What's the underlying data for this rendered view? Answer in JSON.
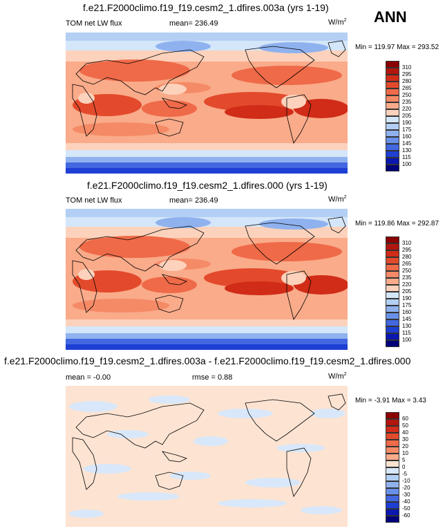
{
  "season": "ANN",
  "panels": [
    {
      "title": "f.e21.F2000climo.f19_f19.cesm2_1.dfires.003a (yrs 1-19)",
      "variable": "TOM net LW flux",
      "mean_label": "mean= 236.49",
      "units_base": "W/m",
      "units_exp": "2",
      "minmax": "Min = 119.97 Max = 293.52",
      "levels": [
        "310",
        "295",
        "280",
        "265",
        "250",
        "235",
        "220",
        "205",
        "190",
        "175",
        "160",
        "145",
        "130",
        "115",
        "100"
      ],
      "colors": [
        "#8b0000",
        "#b2160e",
        "#d02c18",
        "#e34a2c",
        "#ef6a48",
        "#f58a66",
        "#f9ab8a",
        "#fdd2bc",
        "#d4e6f9",
        "#b3cff4",
        "#8fb2ef",
        "#6990e9",
        "#4267e0",
        "#1e3fd3",
        "#0a17b0",
        "#00007a"
      ]
    },
    {
      "title": "f.e21.F2000climo.f19_f19.cesm2_1.dfires.000 (yrs 1-19)",
      "variable": "TOM net LW flux",
      "mean_label": "mean= 236.49",
      "units_base": "W/m",
      "units_exp": "2",
      "minmax": "Min = 119.86 Max = 292.87",
      "levels": [
        "310",
        "295",
        "280",
        "265",
        "250",
        "235",
        "220",
        "205",
        "190",
        "175",
        "160",
        "145",
        "130",
        "115",
        "100"
      ],
      "colors": [
        "#8b0000",
        "#b2160e",
        "#d02c18",
        "#e34a2c",
        "#ef6a48",
        "#f58a66",
        "#f9ab8a",
        "#fdd2bc",
        "#d4e6f9",
        "#b3cff4",
        "#8fb2ef",
        "#6990e9",
        "#4267e0",
        "#1e3fd3",
        "#0a17b0",
        "#00007a"
      ]
    },
    {
      "title": "f.e21.F2000climo.f19_f19.cesm2_1.dfires.003a - f.e21.F2000climo.f19_f19.cesm2_1.dfires.000",
      "mean_label": "mean =  -0.00",
      "rmse_label": "rmse =   0.88",
      "units_base": "W/m",
      "units_exp": "2",
      "minmax": "Min =  -3.91 Max =   3.43",
      "levels": [
        "60",
        "50",
        "40",
        "30",
        "20",
        "10",
        "5",
        "0",
        "-5",
        "-10",
        "-20",
        "-30",
        "-40",
        "-50",
        "-60"
      ],
      "colors": [
        "#8b0000",
        "#b2160e",
        "#d02c18",
        "#e34a2c",
        "#ef6a48",
        "#f58a66",
        "#f9ab8a",
        "#fde3d2",
        "#d8e8fa",
        "#b3cff4",
        "#8fb2ef",
        "#6990e9",
        "#4267e0",
        "#1e3fd3",
        "#0a17b0",
        "#00007a"
      ]
    }
  ]
}
